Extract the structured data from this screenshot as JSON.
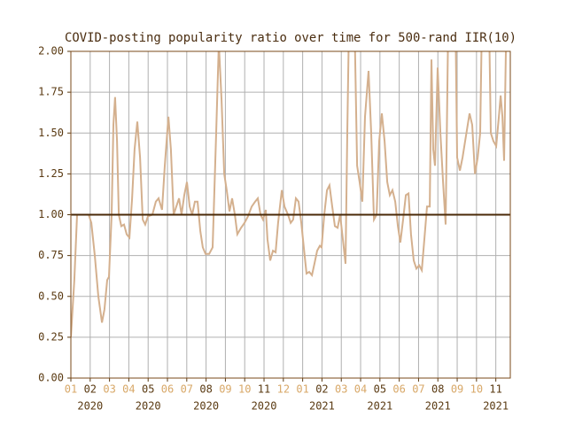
{
  "chart_data": {
    "type": "line",
    "title": "COVID-posting popularity ratio over time for 500-rand IIR(10)",
    "color": "#d4b08e",
    "grid": true,
    "hline": 1,
    "hline_color": "#4a2a08",
    "xlim": [
      0,
      22.75
    ],
    "ylim": [
      0,
      2
    ],
    "yticks": [
      {
        "value": 0,
        "label": "0.00"
      },
      {
        "value": 0.25,
        "label": "0.25"
      },
      {
        "value": 0.5,
        "label": "0.50"
      },
      {
        "value": 0.75,
        "label": "0.75"
      },
      {
        "value": 1,
        "label": "1.00"
      },
      {
        "value": 1.25,
        "label": "1.25"
      },
      {
        "value": 1.5,
        "label": "1.50"
      },
      {
        "value": 1.75,
        "label": "1.75"
      },
      {
        "value": 2,
        "label": "2.00"
      }
    ],
    "xticks": [
      {
        "value": 0,
        "label": "01"
      },
      {
        "value": 1,
        "label": "02",
        "year": "2020"
      },
      {
        "value": 2,
        "label": "03"
      },
      {
        "value": 3,
        "label": "04"
      },
      {
        "value": 4,
        "label": "05",
        "year": "2020"
      },
      {
        "value": 5,
        "label": "06"
      },
      {
        "value": 6,
        "label": "07"
      },
      {
        "value": 7,
        "label": "08",
        "year": "2020"
      },
      {
        "value": 8,
        "label": "09"
      },
      {
        "value": 9,
        "label": "10"
      },
      {
        "value": 10,
        "label": "11",
        "year": "2020"
      },
      {
        "value": 11,
        "label": "12"
      },
      {
        "value": 12,
        "label": "01"
      },
      {
        "value": 13,
        "label": "02",
        "year": "2021"
      },
      {
        "value": 14,
        "label": "03"
      },
      {
        "value": 15,
        "label": "04"
      },
      {
        "value": 16,
        "label": "05",
        "year": "2021"
      },
      {
        "value": 17,
        "label": "06"
      },
      {
        "value": 18,
        "label": "07"
      },
      {
        "value": 19,
        "label": "08",
        "year": "2021"
      },
      {
        "value": 20,
        "label": "09"
      },
      {
        "value": 21,
        "label": "10"
      },
      {
        "value": 22,
        "label": "11",
        "year": "2021"
      }
    ],
    "x": [
      0,
      0.18,
      0.32,
      0.46,
      0.92,
      1.06,
      1.24,
      1.42,
      1.61,
      1.74,
      1.88,
      1.97,
      2.11,
      2.2,
      2.29,
      2.39,
      2.48,
      2.61,
      2.75,
      2.89,
      3.03,
      3.17,
      3.3,
      3.44,
      3.58,
      3.72,
      3.85,
      3.99,
      4.22,
      4.4,
      4.54,
      4.72,
      4.86,
      5.05,
      5.18,
      5.32,
      5.46,
      5.6,
      5.73,
      5.87,
      6.01,
      6.15,
      6.28,
      6.42,
      6.56,
      6.7,
      6.83,
      6.97,
      7.16,
      7.34,
      7.52,
      7.66,
      7.8,
      7.94,
      8.07,
      8.21,
      8.35,
      8.49,
      8.62,
      8.81,
      8.99,
      9.17,
      9.36,
      9.54,
      9.68,
      9.82,
      9.95,
      10.09,
      10.18,
      10.32,
      10.46,
      10.6,
      10.73,
      10.92,
      11.06,
      11.24,
      11.38,
      11.51,
      11.65,
      11.79,
      11.93,
      12.06,
      12.2,
      12.34,
      12.48,
      12.61,
      12.75,
      12.89,
      12.98,
      13.12,
      13.26,
      13.39,
      13.53,
      13.67,
      13.81,
      13.94,
      14.08,
      14.22,
      14.31,
      14.4,
      14.68,
      14.82,
      14.95,
      15.09,
      15.23,
      15.41,
      15.55,
      15.69,
      15.83,
      15.96,
      16.1,
      16.24,
      16.38,
      16.51,
      16.65,
      16.79,
      16.93,
      17.06,
      17.2,
      17.34,
      17.48,
      17.61,
      17.75,
      17.89,
      18.03,
      18.17,
      18.3,
      18.44,
      18.58,
      18.67,
      18.76,
      18.85,
      18.99,
      19.13,
      19.27,
      19.4,
      19.54,
      19.91,
      20.0,
      20.14,
      20.28,
      20.41,
      20.64,
      20.78,
      20.92,
      21.06,
      21.19,
      21.28,
      21.65,
      21.74,
      21.88,
      22.02,
      22.16,
      22.25,
      22.34,
      22.43,
      22.52,
      22.57
    ],
    "values": [
      0.25,
      0.6,
      1.0,
      1.0,
      1.0,
      0.95,
      0.75,
      0.5,
      0.34,
      0.42,
      0.6,
      0.62,
      1.0,
      1.55,
      1.72,
      1.45,
      1.0,
      0.93,
      0.94,
      0.88,
      0.86,
      1.1,
      1.4,
      1.57,
      1.35,
      0.97,
      0.94,
      0.99,
      1.0,
      1.08,
      1.1,
      1.03,
      1.3,
      1.6,
      1.4,
      1.0,
      1.05,
      1.1,
      1.0,
      1.12,
      1.2,
      1.05,
      1.0,
      1.08,
      1.08,
      0.9,
      0.8,
      0.76,
      0.76,
      0.8,
      1.5,
      2.05,
      1.7,
      1.25,
      1.15,
      1.02,
      1.1,
      1.0,
      0.88,
      0.92,
      0.95,
      0.99,
      1.05,
      1.08,
      1.1,
      1.0,
      0.97,
      1.03,
      0.85,
      0.72,
      0.78,
      0.77,
      0.95,
      1.15,
      1.05,
      1.0,
      0.95,
      0.97,
      1.1,
      1.08,
      0.95,
      0.8,
      0.64,
      0.65,
      0.63,
      0.7,
      0.78,
      0.81,
      0.8,
      1.0,
      1.15,
      1.18,
      1.05,
      0.93,
      0.92,
      1.0,
      0.85,
      0.7,
      1.5,
      2.2,
      2.2,
      1.3,
      1.2,
      1.08,
      1.6,
      1.88,
      1.5,
      0.97,
      1.0,
      1.45,
      1.62,
      1.45,
      1.2,
      1.12,
      1.15,
      1.08,
      0.93,
      0.83,
      0.97,
      1.12,
      1.13,
      0.88,
      0.72,
      0.67,
      0.69,
      0.66,
      0.85,
      1.05,
      1.05,
      1.95,
      1.4,
      1.3,
      1.9,
      1.5,
      1.2,
      0.94,
      2.2,
      2.2,
      1.35,
      1.27,
      1.35,
      1.45,
      1.62,
      1.55,
      1.25,
      1.35,
      1.5,
      2.2,
      2.2,
      1.5,
      1.45,
      1.42,
      1.6,
      1.73,
      1.6,
      1.33,
      2.0,
      2.2
    ]
  }
}
